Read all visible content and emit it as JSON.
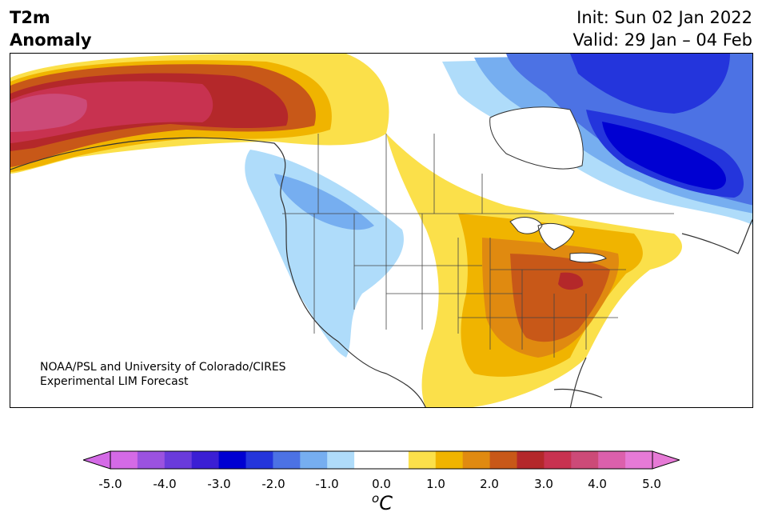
{
  "title": {
    "line1": "T2m",
    "line2": "Anomaly"
  },
  "dates": {
    "init": "Init: Sun 02 Jan 2022",
    "valid": "Valid: 29 Jan – 04 Feb"
  },
  "credit": {
    "line1": "NOAA/PSL and University of Colorado/CIRES",
    "line2": "Experimental LIM Forecast"
  },
  "colorbar": {
    "unit_base": "C",
    "unit_sup": "o",
    "ticks": [
      "-5.0",
      "-4.0",
      "-3.0",
      "-2.0",
      "-1.0",
      "0.0",
      "1.0",
      "2.0",
      "3.0",
      "4.0",
      "5.0"
    ],
    "colors": [
      "#d46ae6",
      "#9b52e0",
      "#6a3bdc",
      "#3b1ed4",
      "#0000d2",
      "#2435dc",
      "#4c72e4",
      "#76aef0",
      "#afdcfa",
      "#ffffff",
      "#ffffff",
      "#fbe04a",
      "#f0b400",
      "#e08a10",
      "#c85818",
      "#b4282a",
      "#c83250",
      "#cc4a78",
      "#dc60ac",
      "#e67ad6"
    ],
    "under_color": "#d46ae6",
    "over_color": "#e67ad6"
  },
  "colors": {
    "cold_strong": "#0000d2",
    "cold_mid": "#4c72e4",
    "cold_light": "#afdcfa",
    "warm_light": "#fbe04a",
    "warm_mid": "#f0b400",
    "warm_orange": "#e08a10",
    "warm_strong": "#c85818",
    "hot": "#b4282a",
    "hot_pink": "#c83250"
  }
}
